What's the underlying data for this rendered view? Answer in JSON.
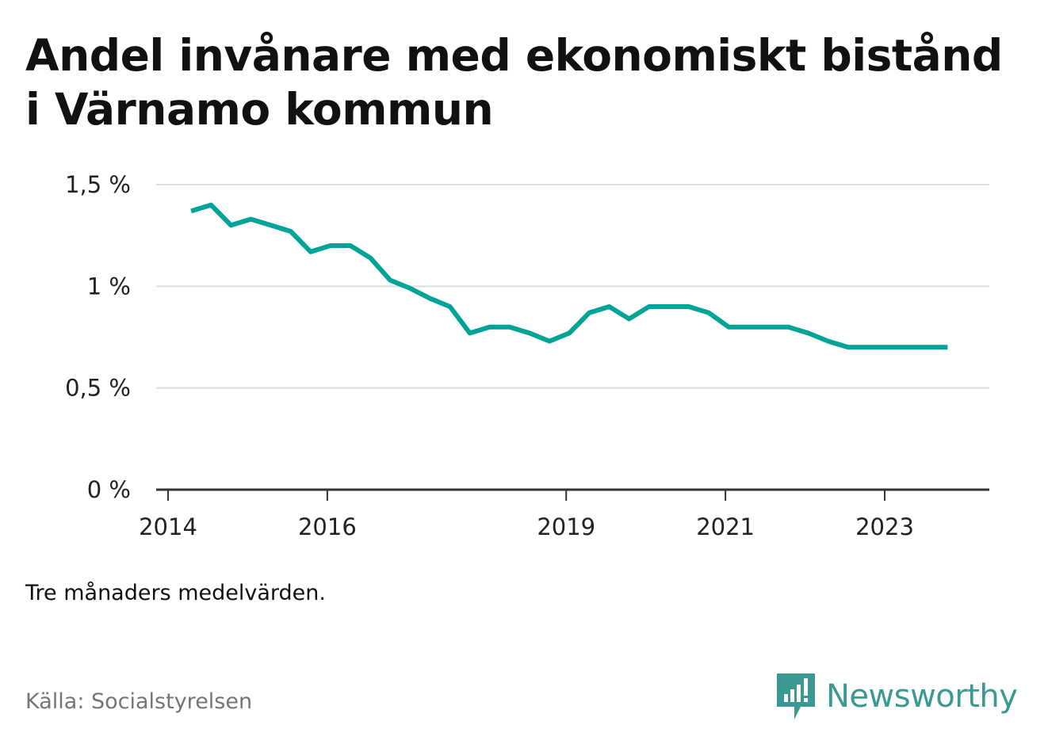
{
  "title": "Andel invånare med ekonomiskt bistånd i Värnamo kommun",
  "note": "Tre månaders medelvärden.",
  "source": "Källa: Socialstyrelsen",
  "brand": {
    "name": "Newsworthy",
    "icon": "newsworthy-logo-icon"
  },
  "colors": {
    "line": "#00a398",
    "grid": "#dddddd",
    "axis": "#333333",
    "brand": "#3a9a93"
  },
  "chart_data": {
    "type": "line",
    "title": "Andel invånare med ekonomiskt bistånd i Värnamo kommun",
    "xlabel": "",
    "ylabel": "",
    "ylim": [
      0,
      1.5
    ],
    "xlim": [
      2014.0,
      2024.4
    ],
    "y_ticks": [
      0,
      0.5,
      1,
      1.5
    ],
    "y_tick_labels": [
      "0 %",
      "0,5 %",
      "1 %",
      "1,5 %"
    ],
    "x_ticks": [
      2014,
      2016,
      2019,
      2021,
      2023
    ],
    "x_tick_labels": [
      "2014",
      "2016",
      "2019",
      "2021",
      "2023"
    ],
    "series": [
      {
        "name": "Andel invånare med ekonomiskt bistånd",
        "x": [
          2014.29,
          2014.54,
          2014.79,
          2015.04,
          2015.29,
          2015.54,
          2015.79,
          2016.04,
          2016.29,
          2016.54,
          2016.79,
          2017.04,
          2017.29,
          2017.54,
          2017.79,
          2018.04,
          2018.29,
          2018.54,
          2018.79,
          2019.04,
          2019.29,
          2019.54,
          2019.79,
          2020.04,
          2020.29,
          2020.54,
          2020.79,
          2021.04,
          2021.29,
          2021.54,
          2021.79,
          2022.04,
          2022.29,
          2022.54,
          2022.79,
          2023.04,
          2023.29,
          2023.54,
          2023.79
        ],
        "values": [
          1.37,
          1.4,
          1.3,
          1.33,
          1.3,
          1.27,
          1.17,
          1.2,
          1.2,
          1.14,
          1.03,
          0.99,
          0.94,
          0.9,
          0.77,
          0.8,
          0.8,
          0.77,
          0.73,
          0.77,
          0.87,
          0.9,
          0.84,
          0.9,
          0.9,
          0.9,
          0.87,
          0.8,
          0.8,
          0.8,
          0.8,
          0.77,
          0.73,
          0.7,
          0.7,
          0.7,
          0.7,
          0.7,
          0.7
        ]
      }
    ]
  }
}
